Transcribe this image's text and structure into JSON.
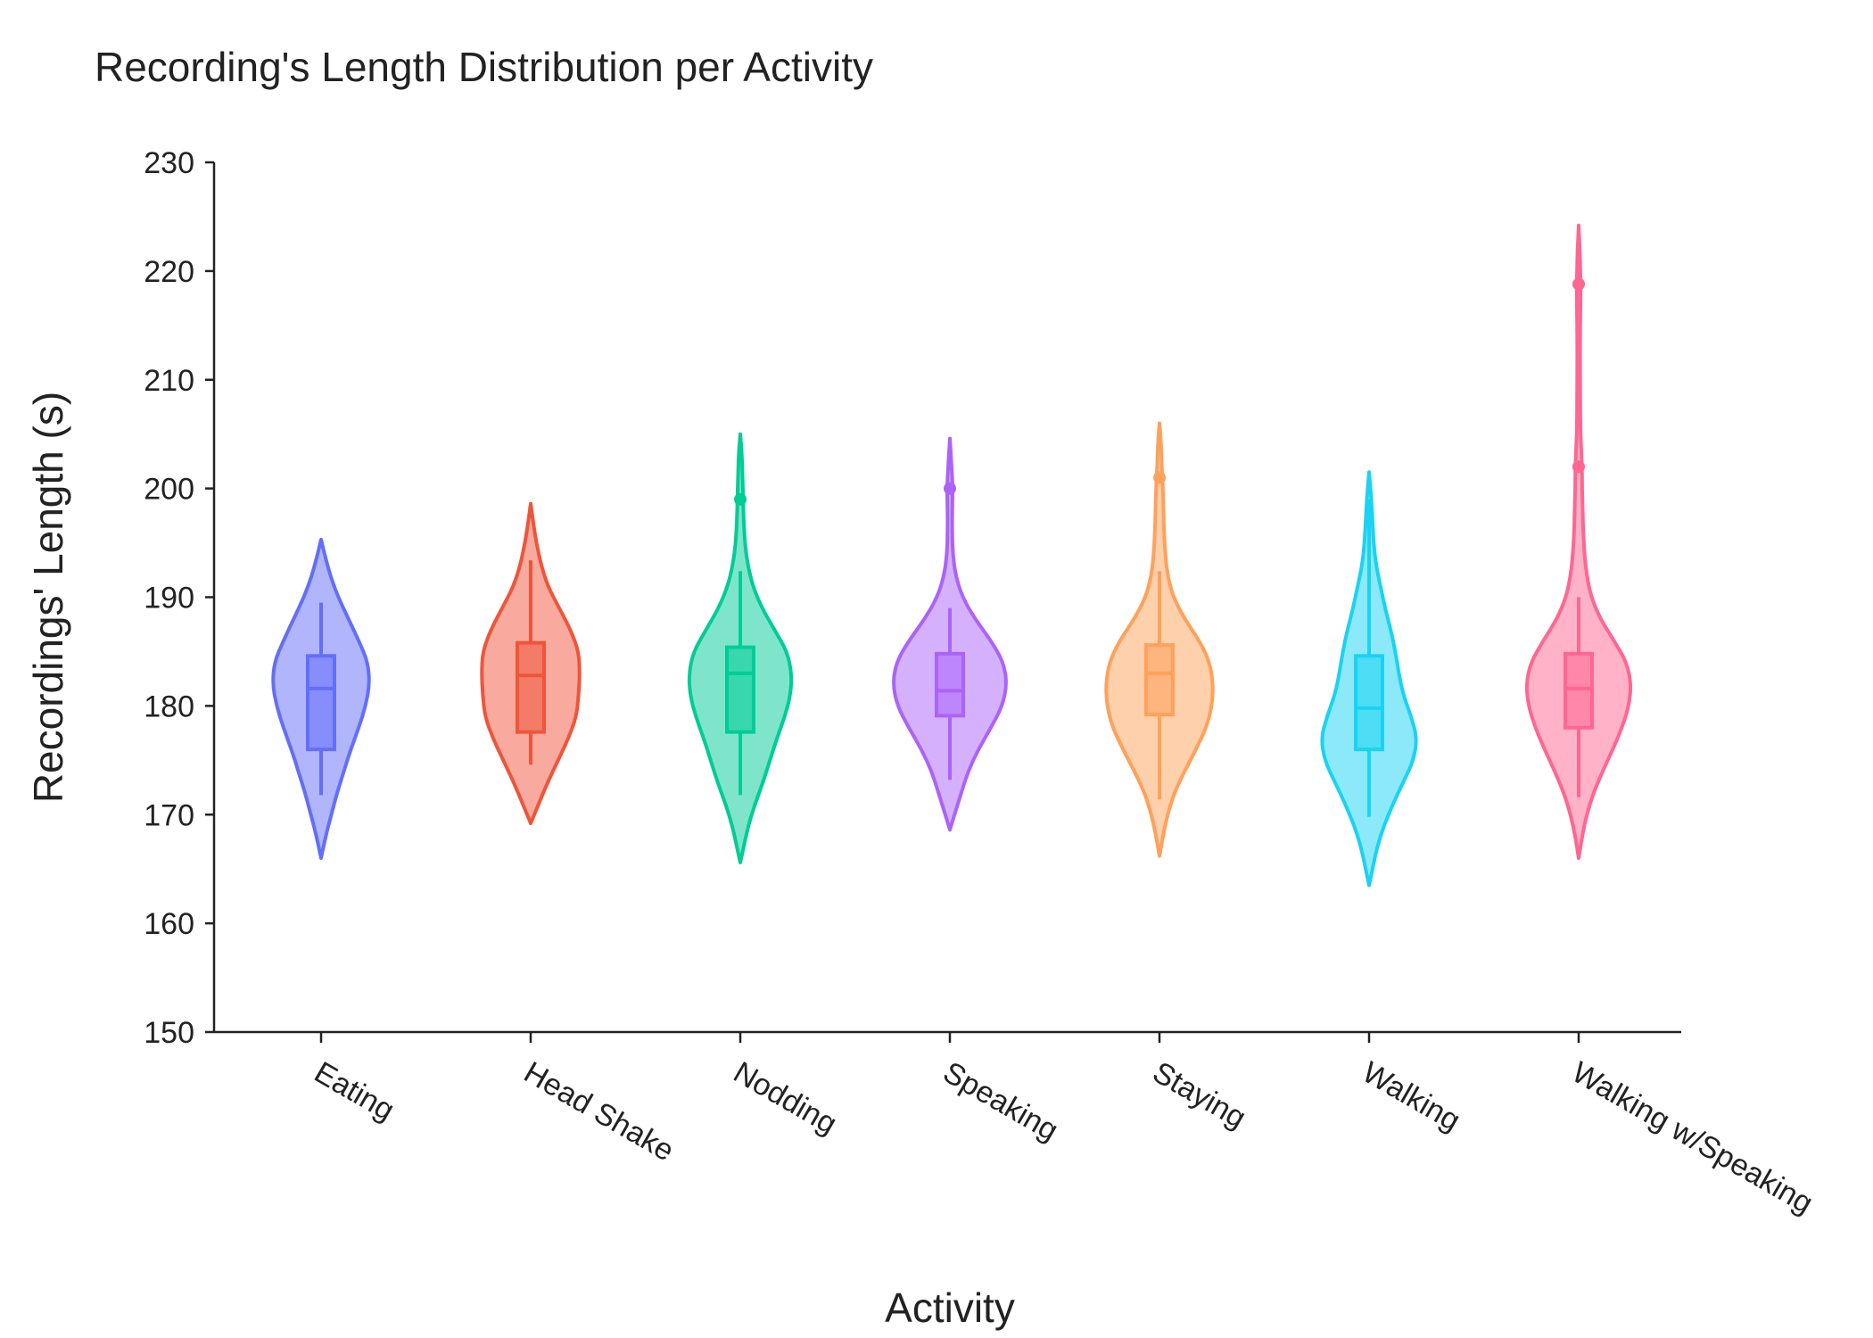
{
  "chart_data": {
    "type": "violin",
    "title": "Recording's Length Distribution per Activity",
    "xlabel": "Activity",
    "ylabel": "Recordings' Length (s)",
    "ylim": [
      150,
      230
    ],
    "yticks": [
      150,
      160,
      170,
      180,
      190,
      200,
      210,
      220,
      230
    ],
    "grid": false,
    "legend": "none",
    "categories": [
      "Eating",
      "Head Shake",
      "Nodding",
      "Speaking",
      "Staying",
      "Walking",
      "Walking w/Speaking"
    ],
    "series": [
      {
        "category": "Eating",
        "color": "#636EFA",
        "min": 171.8,
        "q1": 176.0,
        "median": 181.6,
        "q3": 184.6,
        "max": 189.5,
        "upper_fence": 189.5,
        "outliers": [],
        "range": [
          166.0,
          195.3
        ],
        "density": [
          [
            166.0,
            0.0
          ],
          [
            168.0,
            0.08
          ],
          [
            170.0,
            0.18
          ],
          [
            172.0,
            0.28
          ],
          [
            174.0,
            0.4
          ],
          [
            176.0,
            0.52
          ],
          [
            178.0,
            0.66
          ],
          [
            180.0,
            0.78
          ],
          [
            182.0,
            0.85
          ],
          [
            184.0,
            0.82
          ],
          [
            186.0,
            0.66
          ],
          [
            188.0,
            0.48
          ],
          [
            190.0,
            0.3
          ],
          [
            192.0,
            0.16
          ],
          [
            194.0,
            0.06
          ],
          [
            195.3,
            0.0
          ]
        ]
      },
      {
        "category": "Head Shake",
        "color": "#EF553B",
        "min": 174.6,
        "q1": 177.6,
        "median": 182.8,
        "q3": 185.8,
        "max": 193.4,
        "upper_fence": 193.4,
        "outliers": [],
        "range": [
          169.2,
          198.6
        ],
        "density": [
          [
            169.2,
            0.0
          ],
          [
            171.0,
            0.14
          ],
          [
            173.0,
            0.3
          ],
          [
            175.0,
            0.48
          ],
          [
            177.0,
            0.66
          ],
          [
            179.0,
            0.8
          ],
          [
            181.0,
            0.84
          ],
          [
            183.0,
            0.86
          ],
          [
            185.0,
            0.84
          ],
          [
            187.0,
            0.7
          ],
          [
            189.0,
            0.5
          ],
          [
            191.0,
            0.3
          ],
          [
            193.0,
            0.18
          ],
          [
            195.0,
            0.1
          ],
          [
            197.0,
            0.04
          ],
          [
            198.6,
            0.0
          ]
        ]
      },
      {
        "category": "Nodding",
        "color": "#00CC96",
        "min": 171.8,
        "q1": 177.6,
        "median": 183.0,
        "q3": 185.4,
        "max": 192.4,
        "upper_fence": 192.4,
        "outliers": [
          199.0
        ],
        "range": [
          165.6,
          205.0
        ],
        "density": [
          [
            165.6,
            0.0
          ],
          [
            167.0,
            0.06
          ],
          [
            169.0,
            0.14
          ],
          [
            171.0,
            0.26
          ],
          [
            173.0,
            0.4
          ],
          [
            175.0,
            0.52
          ],
          [
            177.0,
            0.64
          ],
          [
            179.0,
            0.78
          ],
          [
            181.0,
            0.88
          ],
          [
            183.0,
            0.9
          ],
          [
            185.0,
            0.82
          ],
          [
            187.0,
            0.6
          ],
          [
            189.0,
            0.38
          ],
          [
            191.0,
            0.22
          ],
          [
            193.0,
            0.13
          ],
          [
            195.0,
            0.08
          ],
          [
            197.0,
            0.06
          ],
          [
            199.0,
            0.05
          ],
          [
            201.0,
            0.04
          ],
          [
            203.0,
            0.03
          ],
          [
            205.0,
            0.0
          ]
        ]
      },
      {
        "category": "Speaking",
        "color": "#AB63FA",
        "min": 173.2,
        "q1": 179.1,
        "median": 181.4,
        "q3": 184.8,
        "max": 189.0,
        "upper_fence": 189.0,
        "outliers": [
          200.0
        ],
        "range": [
          168.6,
          204.6
        ],
        "density": [
          [
            168.6,
            0.0
          ],
          [
            170.0,
            0.08
          ],
          [
            172.0,
            0.2
          ],
          [
            174.0,
            0.32
          ],
          [
            176.0,
            0.5
          ],
          [
            178.0,
            0.72
          ],
          [
            180.0,
            0.92
          ],
          [
            182.0,
            1.0
          ],
          [
            184.0,
            0.94
          ],
          [
            186.0,
            0.72
          ],
          [
            188.0,
            0.44
          ],
          [
            190.0,
            0.22
          ],
          [
            192.0,
            0.1
          ],
          [
            194.0,
            0.05
          ],
          [
            196.0,
            0.04
          ],
          [
            198.0,
            0.04
          ],
          [
            200.0,
            0.05
          ],
          [
            202.0,
            0.03
          ],
          [
            204.6,
            0.0
          ]
        ]
      },
      {
        "category": "Staying",
        "color": "#FFA15A",
        "min": 171.4,
        "q1": 179.2,
        "median": 183.0,
        "q3": 185.6,
        "max": 192.4,
        "upper_fence": 192.4,
        "outliers": [
          201.0
        ],
        "range": [
          166.2,
          206.0
        ],
        "density": [
          [
            166.2,
            0.0
          ],
          [
            168.0,
            0.06
          ],
          [
            170.0,
            0.14
          ],
          [
            172.0,
            0.26
          ],
          [
            174.0,
            0.44
          ],
          [
            176.0,
            0.64
          ],
          [
            178.0,
            0.82
          ],
          [
            180.0,
            0.92
          ],
          [
            182.0,
            0.94
          ],
          [
            184.0,
            0.88
          ],
          [
            186.0,
            0.7
          ],
          [
            188.0,
            0.44
          ],
          [
            190.0,
            0.24
          ],
          [
            192.0,
            0.14
          ],
          [
            194.0,
            0.1
          ],
          [
            196.0,
            0.08
          ],
          [
            198.0,
            0.07
          ],
          [
            200.0,
            0.06
          ],
          [
            202.0,
            0.04
          ],
          [
            204.0,
            0.03
          ],
          [
            206.0,
            0.0
          ]
        ]
      },
      {
        "category": "Walking",
        "color": "#19D3F3",
        "min": 169.8,
        "q1": 176.0,
        "median": 179.8,
        "q3": 184.6,
        "max": 199.0,
        "upper_fence": 199.0,
        "outliers": [],
        "range": [
          163.5,
          201.5
        ],
        "density": [
          [
            163.5,
            0.0
          ],
          [
            165.0,
            0.06
          ],
          [
            167.0,
            0.14
          ],
          [
            169.0,
            0.26
          ],
          [
            171.0,
            0.42
          ],
          [
            173.0,
            0.6
          ],
          [
            175.0,
            0.78
          ],
          [
            177.0,
            0.84
          ],
          [
            179.0,
            0.74
          ],
          [
            181.0,
            0.6
          ],
          [
            183.0,
            0.52
          ],
          [
            185.0,
            0.46
          ],
          [
            187.0,
            0.38
          ],
          [
            189.0,
            0.28
          ],
          [
            191.0,
            0.2
          ],
          [
            193.0,
            0.12
          ],
          [
            195.0,
            0.08
          ],
          [
            197.0,
            0.06
          ],
          [
            199.0,
            0.04
          ],
          [
            201.5,
            0.0
          ]
        ]
      },
      {
        "category": "Walking w/Speaking",
        "color": "#FF6692",
        "min": 171.6,
        "q1": 178.0,
        "median": 181.6,
        "q3": 184.8,
        "max": 190.0,
        "upper_fence": 190.0,
        "outliers": [
          202.0,
          218.8
        ],
        "range": [
          166.0,
          224.2
        ],
        "density": [
          [
            166.0,
            0.0
          ],
          [
            168.0,
            0.06
          ],
          [
            170.0,
            0.14
          ],
          [
            172.0,
            0.26
          ],
          [
            174.0,
            0.42
          ],
          [
            176.0,
            0.6
          ],
          [
            178.0,
            0.76
          ],
          [
            180.0,
            0.88
          ],
          [
            182.0,
            0.92
          ],
          [
            184.0,
            0.84
          ],
          [
            186.0,
            0.62
          ],
          [
            188.0,
            0.38
          ],
          [
            190.0,
            0.22
          ],
          [
            192.0,
            0.14
          ],
          [
            194.0,
            0.1
          ],
          [
            196.0,
            0.08
          ],
          [
            198.0,
            0.07
          ],
          [
            200.0,
            0.06
          ],
          [
            202.0,
            0.06
          ],
          [
            204.0,
            0.04
          ],
          [
            206.0,
            0.03
          ],
          [
            210.0,
            0.025
          ],
          [
            214.0,
            0.025
          ],
          [
            218.0,
            0.035
          ],
          [
            220.0,
            0.03
          ],
          [
            222.0,
            0.02
          ],
          [
            224.2,
            0.0
          ]
        ]
      }
    ]
  }
}
